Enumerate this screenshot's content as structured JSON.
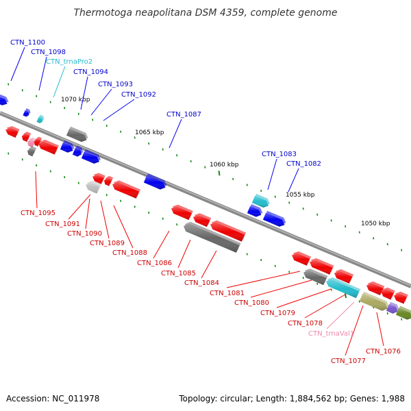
{
  "title": "Thermotoga neapolitana DSM 4359, complete genome",
  "footer": {
    "accession": "Accession: NC_011978",
    "summary": "Topology: circular; Length: 1,884,562 bp; Genes: 1,988"
  },
  "colors": {
    "forward": "#0000ee",
    "reverse": "#ee0000",
    "trna_forward": "#22bbcc",
    "trna_reverse": "#ee88aa",
    "backbone": "#888888",
    "tick": "#118811",
    "grey_gene": "#666666",
    "olive_gene": "#aaa860",
    "purple_gene": "#7755cc",
    "green_gene": "#668822"
  },
  "scale_labels": [
    "1070 kbp",
    "1065 kbp",
    "1060 kbp",
    "1055 kbp",
    "1050 kbp"
  ],
  "gene_labels_top": [
    "CTN_1100",
    "CTN_1098",
    "CTN_trnaPro2",
    "CTN_1094",
    "CTN_1093",
    "CTN_1092",
    "CTN_1087",
    "CTN_1083",
    "CTN_1082"
  ],
  "gene_labels_bottom": [
    "CTN_1095",
    "CTN_1091",
    "CTN_1090",
    "CTN_1089",
    "CTN_1088",
    "CTN_1086",
    "CTN_1085",
    "CTN_1084",
    "CTN_1081",
    "CTN_1080",
    "CTN_1079",
    "CTN_1078",
    "CTN_trnaVal1",
    "CTN_1077",
    "CTN_1076"
  ]
}
